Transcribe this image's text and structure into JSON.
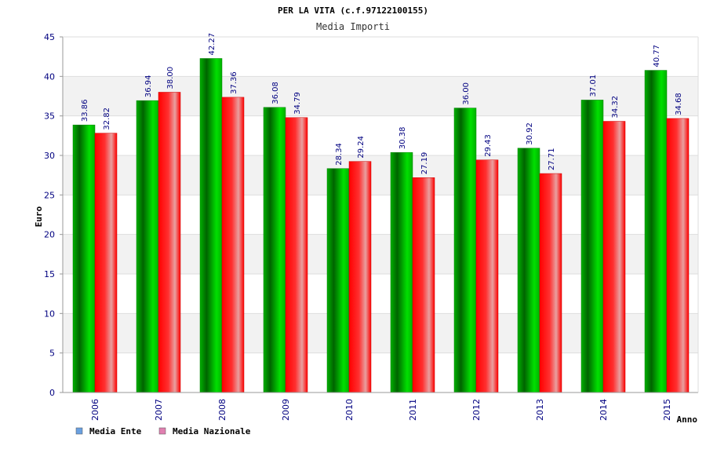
{
  "chart_data": {
    "type": "bar",
    "title": "PER LA VITA (c.f.97122100155)",
    "subtitle": "Media Importi",
    "xlabel": "Anno",
    "ylabel": "Euro",
    "ylim": [
      0,
      45
    ],
    "yticks": [
      "0",
      "5",
      "10",
      "15",
      "20",
      "25",
      "30",
      "35",
      "40",
      "45"
    ],
    "categories": [
      "2006",
      "2007",
      "2008",
      "2009",
      "2010",
      "2011",
      "2012",
      "2013",
      "2014",
      "2015"
    ],
    "series": [
      {
        "name": "Media Ente",
        "values": [
          33.86,
          36.94,
          42.27,
          36.08,
          28.34,
          30.38,
          36.0,
          30.92,
          37.01,
          40.77
        ],
        "labels": [
          "33.86",
          "36.94",
          "42.27",
          "36.08",
          "28.34",
          "30.38",
          "36.00",
          "30.92",
          "37.01",
          "40.77"
        ],
        "color": "#00c000",
        "legend_color": "#6aa0e0"
      },
      {
        "name": "Media Nazionale",
        "values": [
          32.82,
          38.0,
          37.36,
          34.79,
          29.24,
          27.19,
          29.43,
          27.71,
          34.32,
          34.68
        ],
        "labels": [
          "32.82",
          "38.00",
          "37.36",
          "34.79",
          "29.24",
          "27.19",
          "29.43",
          "27.71",
          "34.32",
          "34.68"
        ],
        "color": "#ff1010",
        "legend_color": "#e080b0"
      }
    ],
    "grid": true,
    "legend_position": "bottom-left"
  }
}
